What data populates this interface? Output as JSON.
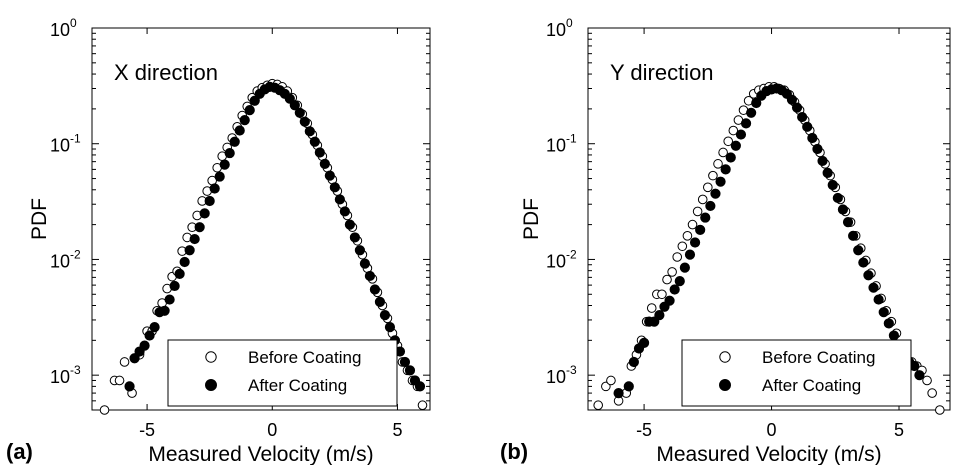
{
  "chart_data": [
    {
      "type": "scatter",
      "panel_label": "(a)",
      "annotation": "X direction",
      "xlabel": "Measured Velocity (m/s)",
      "ylabel": "PDF",
      "xlim": [
        -7.2,
        6.3
      ],
      "ylim": [
        0.0005,
        1
      ],
      "yscale": "log",
      "x_ticks": [
        -5,
        0,
        5
      ],
      "x_tick_labels": [
        "-5",
        "0",
        "5"
      ],
      "y_ticks": [
        0.001,
        0.01,
        0.1,
        1
      ],
      "y_tick_labels": [
        {
          "base": "10",
          "exp": "-3"
        },
        {
          "base": "10",
          "exp": "-2"
        },
        {
          "base": "10",
          "exp": "-1"
        },
        {
          "base": "10",
          "exp": "0"
        }
      ],
      "grid": false,
      "legend_position": "bottom-right",
      "series": [
        {
          "name": "Before Coating",
          "marker": "open-circle",
          "x": [
            -6.7,
            -6.3,
            -6.1,
            -5.9,
            -5.6,
            -5.3,
            -5.0,
            -4.8,
            -4.6,
            -4.4,
            -4.2,
            -4.0,
            -3.8,
            -3.6,
            -3.4,
            -3.2,
            -3.0,
            -2.8,
            -2.6,
            -2.4,
            -2.2,
            -2.0,
            -1.8,
            -1.6,
            -1.4,
            -1.2,
            -1.0,
            -0.8,
            -0.6,
            -0.4,
            -0.2,
            0.0,
            0.2,
            0.4,
            0.6,
            0.8,
            1.0,
            1.2,
            1.4,
            1.6,
            1.8,
            2.0,
            2.2,
            2.4,
            2.6,
            2.8,
            3.0,
            3.2,
            3.4,
            3.6,
            3.8,
            4.0,
            4.2,
            4.4,
            4.6,
            4.8,
            5.0,
            5.2,
            5.4,
            5.6,
            5.8,
            6.0
          ],
          "y": [
            0.0005,
            0.0009,
            0.0009,
            0.0013,
            0.0007,
            0.0015,
            0.0024,
            0.0024,
            0.0036,
            0.0042,
            0.0056,
            0.0071,
            0.0079,
            0.0118,
            0.0155,
            0.019,
            0.024,
            0.032,
            0.039,
            0.048,
            0.062,
            0.078,
            0.093,
            0.112,
            0.14,
            0.175,
            0.21,
            0.25,
            0.285,
            0.305,
            0.32,
            0.33,
            0.325,
            0.31,
            0.285,
            0.25,
            0.215,
            0.18,
            0.15,
            0.12,
            0.097,
            0.078,
            0.062,
            0.049,
            0.039,
            0.03,
            0.024,
            0.019,
            0.0145,
            0.011,
            0.0084,
            0.0068,
            0.0052,
            0.004,
            0.0031,
            0.0023,
            0.0018,
            0.0013,
            0.0011,
            0.0009,
            0.0008,
            0.00055
          ]
        },
        {
          "name": "After Coating",
          "marker": "filled-circle",
          "x": [
            -5.7,
            -5.5,
            -5.3,
            -5.1,
            -4.9,
            -4.7,
            -4.5,
            -4.3,
            -4.1,
            -3.9,
            -3.7,
            -3.5,
            -3.3,
            -3.1,
            -2.9,
            -2.7,
            -2.5,
            -2.3,
            -2.1,
            -1.9,
            -1.7,
            -1.5,
            -1.3,
            -1.1,
            -0.9,
            -0.7,
            -0.5,
            -0.3,
            -0.1,
            0.1,
            0.3,
            0.5,
            0.7,
            0.9,
            1.1,
            1.3,
            1.5,
            1.7,
            1.9,
            2.1,
            2.3,
            2.5,
            2.7,
            2.9,
            3.1,
            3.3,
            3.5,
            3.7,
            3.9,
            4.1,
            4.3,
            4.5,
            4.7,
            4.9,
            5.1,
            5.3,
            5.5,
            5.7,
            5.9
          ],
          "y": [
            0.0008,
            0.0014,
            0.0016,
            0.0018,
            0.0022,
            0.0026,
            0.0035,
            0.0036,
            0.0045,
            0.0059,
            0.0075,
            0.0095,
            0.012,
            0.015,
            0.019,
            0.025,
            0.032,
            0.041,
            0.052,
            0.066,
            0.083,
            0.104,
            0.13,
            0.16,
            0.195,
            0.235,
            0.27,
            0.295,
            0.31,
            0.305,
            0.29,
            0.27,
            0.245,
            0.215,
            0.185,
            0.155,
            0.128,
            0.104,
            0.084,
            0.067,
            0.053,
            0.042,
            0.033,
            0.026,
            0.02,
            0.0155,
            0.012,
            0.0092,
            0.0072,
            0.0055,
            0.0043,
            0.0033,
            0.0026,
            0.002,
            0.0016,
            0.0013,
            0.0011,
            0.0009,
            0.0008
          ]
        }
      ]
    },
    {
      "type": "scatter",
      "panel_label": "(b)",
      "annotation": "Y direction",
      "xlabel": "Measured Velocity (m/s)",
      "ylabel": "PDF",
      "xlim": [
        -7.2,
        7.0
      ],
      "ylim": [
        0.0005,
        1
      ],
      "yscale": "log",
      "x_ticks": [
        -5,
        0,
        5
      ],
      "x_tick_labels": [
        "-5",
        "0",
        "5"
      ],
      "y_ticks": [
        0.001,
        0.01,
        0.1,
        1
      ],
      "y_tick_labels": [
        {
          "base": "10",
          "exp": "-3"
        },
        {
          "base": "10",
          "exp": "-2"
        },
        {
          "base": "10",
          "exp": "-1"
        },
        {
          "base": "10",
          "exp": "0"
        }
      ],
      "grid": false,
      "legend_position": "bottom-right",
      "series": [
        {
          "name": "Before Coating",
          "marker": "open-circle",
          "x": [
            -6.8,
            -6.5,
            -6.3,
            -6.0,
            -5.7,
            -5.5,
            -5.3,
            -5.1,
            -4.9,
            -4.7,
            -4.5,
            -4.3,
            -4.1,
            -3.9,
            -3.7,
            -3.5,
            -3.3,
            -3.1,
            -2.9,
            -2.7,
            -2.5,
            -2.3,
            -2.1,
            -1.9,
            -1.7,
            -1.5,
            -1.3,
            -1.1,
            -0.9,
            -0.7,
            -0.5,
            -0.3,
            -0.1,
            0.1,
            0.3,
            0.5,
            0.7,
            0.9,
            1.1,
            1.3,
            1.5,
            1.7,
            1.9,
            2.1,
            2.3,
            2.5,
            2.7,
            2.9,
            3.1,
            3.3,
            3.5,
            3.7,
            3.9,
            4.1,
            4.3,
            4.5,
            4.7,
            4.9,
            5.1,
            5.3,
            5.5,
            5.7,
            5.9,
            6.1,
            6.3,
            6.6
          ],
          "y": [
            0.00055,
            0.0008,
            0.0009,
            0.0006,
            0.0007,
            0.0012,
            0.0015,
            0.002,
            0.0029,
            0.0038,
            0.005,
            0.005,
            0.0067,
            0.0078,
            0.0105,
            0.013,
            0.016,
            0.02,
            0.026,
            0.033,
            0.042,
            0.053,
            0.067,
            0.084,
            0.105,
            0.13,
            0.16,
            0.195,
            0.235,
            0.27,
            0.29,
            0.3,
            0.31,
            0.31,
            0.3,
            0.29,
            0.265,
            0.23,
            0.195,
            0.16,
            0.13,
            0.104,
            0.084,
            0.067,
            0.053,
            0.042,
            0.033,
            0.026,
            0.021,
            0.016,
            0.0125,
            0.0098,
            0.0076,
            0.0059,
            0.0046,
            0.0036,
            0.0029,
            0.0023,
            0.0018,
            0.0015,
            0.0013,
            0.0012,
            0.0011,
            0.0009,
            0.0007,
            0.0005
          ]
        },
        {
          "name": "After Coating",
          "marker": "filled-circle",
          "x": [
            -6.0,
            -5.6,
            -5.4,
            -5.2,
            -5.0,
            -4.8,
            -4.6,
            -4.4,
            -4.2,
            -4.0,
            -3.8,
            -3.6,
            -3.4,
            -3.2,
            -3.0,
            -2.8,
            -2.6,
            -2.4,
            -2.2,
            -2.0,
            -1.8,
            -1.6,
            -1.4,
            -1.2,
            -1.0,
            -0.8,
            -0.6,
            -0.4,
            -0.2,
            0.0,
            0.2,
            0.4,
            0.6,
            0.8,
            1.0,
            1.2,
            1.4,
            1.6,
            1.8,
            2.0,
            2.2,
            2.4,
            2.6,
            2.8,
            3.0,
            3.2,
            3.4,
            3.6,
            3.8,
            4.0,
            4.2,
            4.4,
            4.6,
            4.8,
            5.0,
            5.2,
            5.4,
            5.6,
            5.8
          ],
          "y": [
            0.0007,
            0.0008,
            0.0013,
            0.0017,
            0.0019,
            0.0029,
            0.0029,
            0.0033,
            0.0039,
            0.0044,
            0.0055,
            0.0065,
            0.0085,
            0.011,
            0.014,
            0.018,
            0.023,
            0.029,
            0.037,
            0.047,
            0.06,
            0.076,
            0.096,
            0.12,
            0.15,
            0.185,
            0.225,
            0.26,
            0.285,
            0.295,
            0.3,
            0.29,
            0.27,
            0.24,
            0.205,
            0.17,
            0.14,
            0.112,
            0.09,
            0.071,
            0.056,
            0.044,
            0.034,
            0.027,
            0.021,
            0.016,
            0.012,
            0.0094,
            0.0073,
            0.0057,
            0.0045,
            0.0035,
            0.0028,
            0.0022,
            0.0018,
            0.0015,
            0.0013,
            0.0012,
            0.001
          ]
        }
      ]
    }
  ]
}
